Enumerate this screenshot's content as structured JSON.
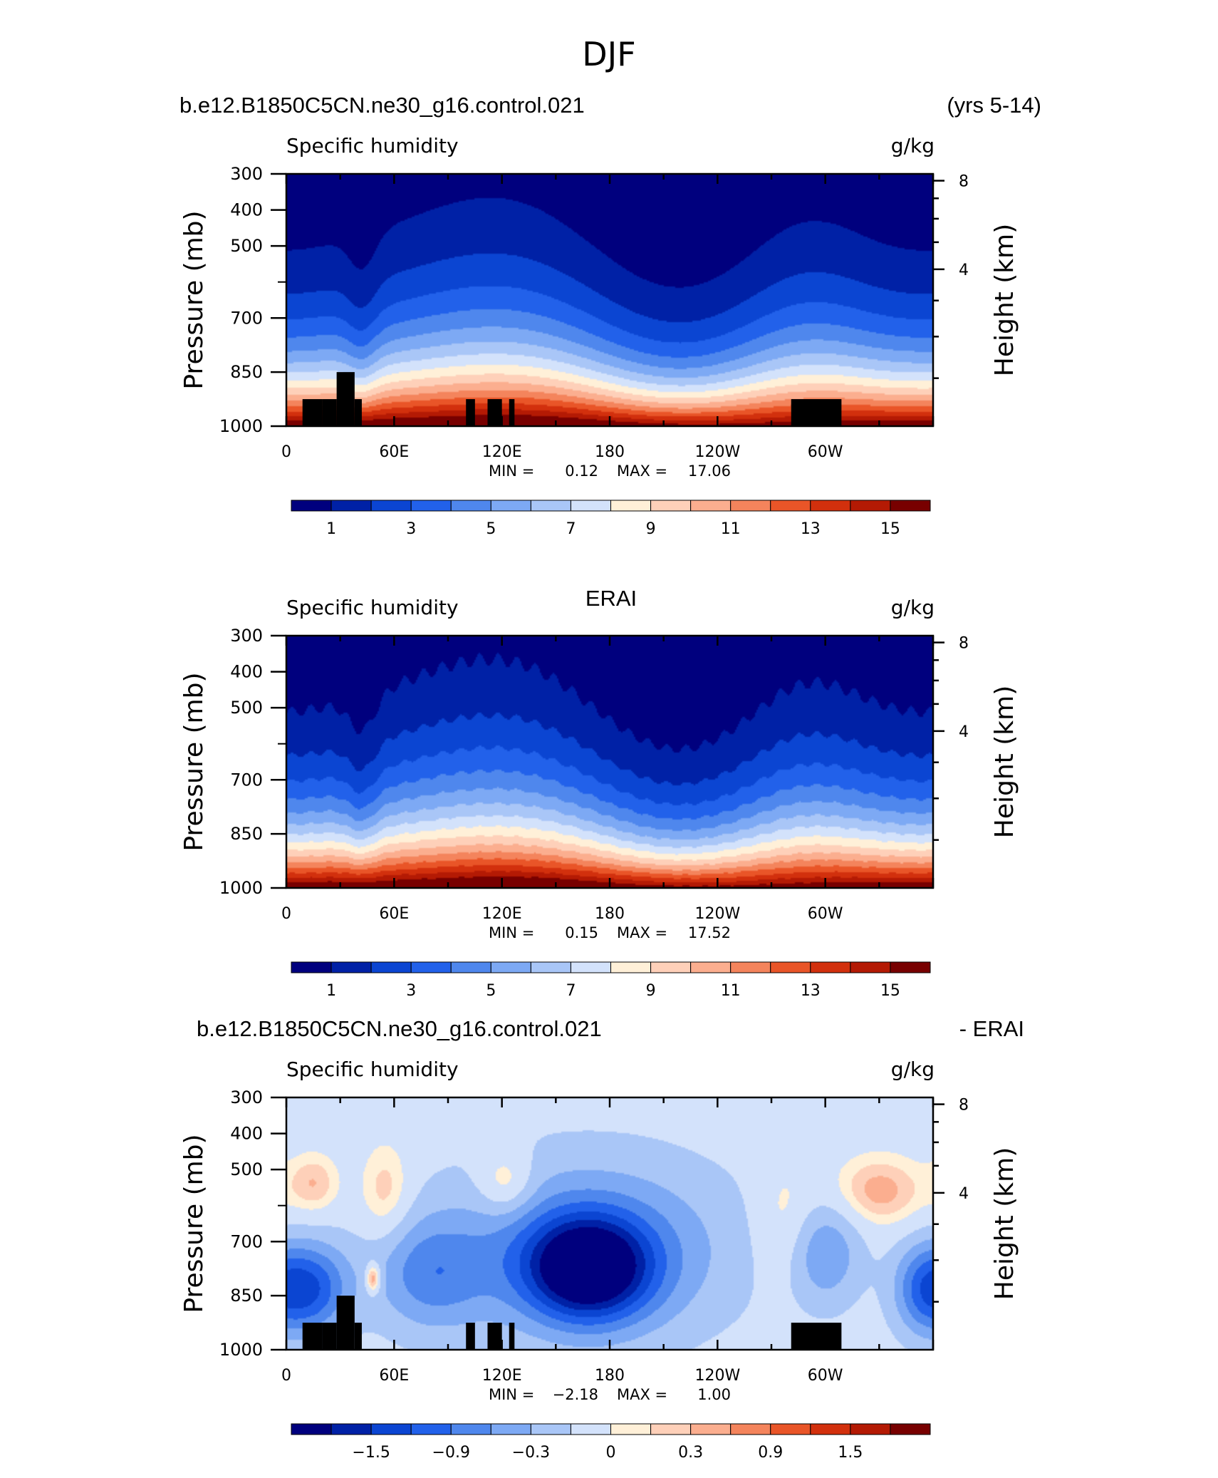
{
  "figure": {
    "title": "DJF"
  },
  "colors": {
    "abs_palette": [
      "#00007e",
      "#0021a6",
      "#0b45d2",
      "#2261ea",
      "#4f87ed",
      "#7da9f4",
      "#a9c6f7",
      "#d3e2fb",
      "#fff0d8",
      "#fed0b9",
      "#fbae8f",
      "#f4845c",
      "#e95528",
      "#d2300d",
      "#b41a04",
      "#780000"
    ],
    "diff_palette": [
      "#00007e",
      "#0021a6",
      "#0b45d2",
      "#2261ea",
      "#4f87ed",
      "#7da9f4",
      "#a9c6f7",
      "#d3e2fb",
      "#fff0d8",
      "#fed0b9",
      "#fbae8f",
      "#f4845c",
      "#e95528",
      "#d2300d",
      "#b41a04",
      "#780000"
    ],
    "land_mask": "#000000"
  },
  "chart_data": [
    {
      "type": "heatmap",
      "header_left": "b.e12.B1850C5CN.ne30_g16.control.021",
      "header_right": "(yrs 5-14)",
      "variable": "Specific humidity",
      "units": "g/kg",
      "ylabel": "Pressure (mb)",
      "ylabel_right": "Height (km)",
      "x_ticks": [
        "0",
        "60E",
        "120E",
        "180",
        "120W",
        "60W"
      ],
      "y_ticks": [
        "300",
        "400",
        "500",
        "700",
        "850",
        "1000"
      ],
      "y_ticks_right": [
        "8",
        "4"
      ],
      "xlim": [
        "0",
        "360"
      ],
      "ylim": [
        1000,
        300
      ],
      "stats": {
        "min_label": "MIN =",
        "min": "0.12",
        "max_label": "MAX =",
        "max": "17.06"
      },
      "colorbar": {
        "levels": 16,
        "labels": [
          "1",
          "3",
          "5",
          "7",
          "9",
          "11",
          "13",
          "15"
        ]
      }
    },
    {
      "type": "heatmap",
      "header_center": "ERAI",
      "variable": "Specific humidity",
      "units": "g/kg",
      "ylabel": "Pressure (mb)",
      "ylabel_right": "Height (km)",
      "x_ticks": [
        "0",
        "60E",
        "120E",
        "180",
        "120W",
        "60W"
      ],
      "y_ticks": [
        "300",
        "400",
        "500",
        "700",
        "850",
        "1000"
      ],
      "y_ticks_right": [
        "8",
        "4"
      ],
      "xlim": [
        "0",
        "360"
      ],
      "ylim": [
        1000,
        300
      ],
      "stats": {
        "min_label": "MIN =",
        "min": "0.15",
        "max_label": "MAX =",
        "max": "17.52"
      },
      "colorbar": {
        "levels": 16,
        "labels": [
          "1",
          "3",
          "5",
          "7",
          "9",
          "11",
          "13",
          "15"
        ]
      }
    },
    {
      "type": "heatmap",
      "header_left": "b.e12.B1850C5CN.ne30_g16.control.021",
      "header_right": "- ERAI",
      "variable": "Specific humidity",
      "units": "g/kg",
      "ylabel": "Pressure (mb)",
      "ylabel_right": "Height (km)",
      "x_ticks": [
        "0",
        "60E",
        "120E",
        "180",
        "120W",
        "60W"
      ],
      "y_ticks": [
        "300",
        "400",
        "500",
        "700",
        "850",
        "1000"
      ],
      "y_ticks_right": [
        "8",
        "4"
      ],
      "xlim": [
        "0",
        "360"
      ],
      "ylim": [
        1000,
        300
      ],
      "stats": {
        "min_label": "MIN =",
        "min": "−2.18",
        "max_label": "MAX =",
        "max": "1.00"
      },
      "colorbar": {
        "levels": 16,
        "labels": [
          "−1.5",
          "−0.9",
          "−0.3",
          "0",
          "0.3",
          "0.9",
          "1.5"
        ]
      }
    }
  ]
}
